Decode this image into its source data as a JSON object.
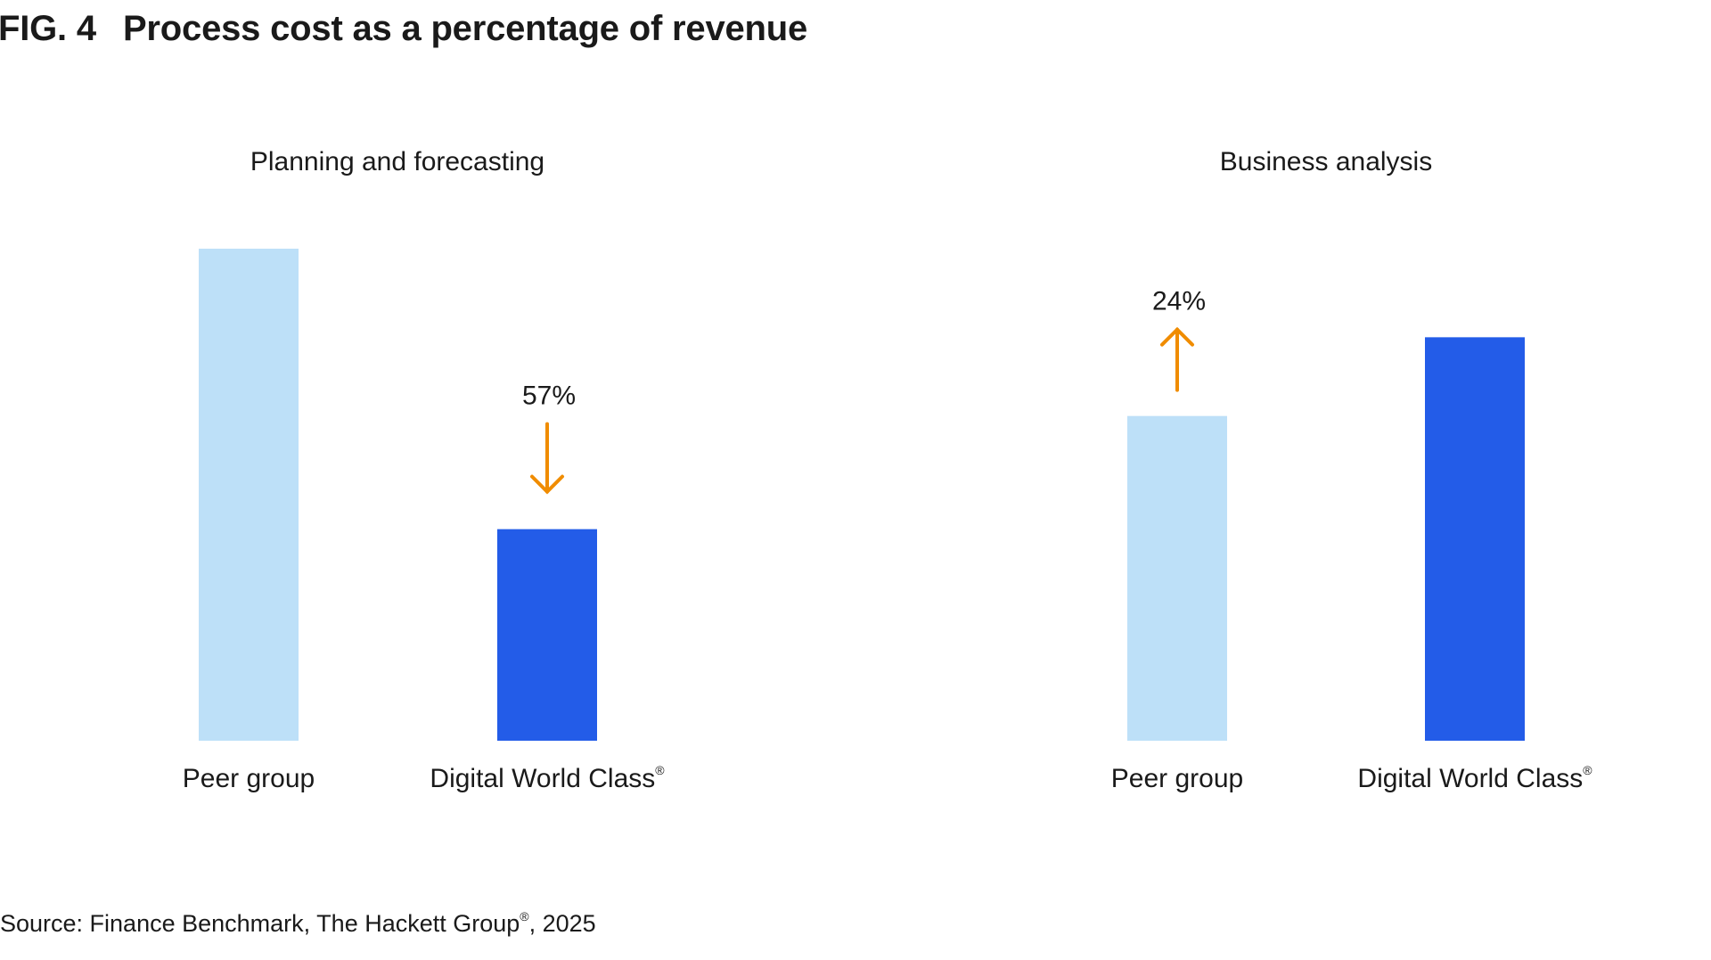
{
  "figure": {
    "number": "FIG. 4",
    "title": "Process cost as a percentage of revenue"
  },
  "source": {
    "prefix": "Source: Finance Benchmark, The Hackett Group",
    "sup": "®",
    "suffix": ", 2025"
  },
  "colors": {
    "peer_group": "#bde0f8",
    "digital_world_class": "#235ce8",
    "arrow": "#f08c00"
  },
  "chart_data": [
    {
      "type": "bar",
      "title": "Planning and forecasting",
      "categories": [
        "Peer group",
        "Digital World Class"
      ],
      "category_sup": [
        "",
        "®"
      ],
      "values": [
        1.0,
        0.43
      ],
      "value_note": "relative; Digital World Class is 57% lower than Peer group",
      "annotation": {
        "text": "57%",
        "direction": "down",
        "on_category": "Digital World Class"
      },
      "axis_visible": false,
      "grid": false
    },
    {
      "type": "bar",
      "title": "Business analysis",
      "categories": [
        "Peer group",
        "Digital World Class"
      ],
      "category_sup": [
        "",
        "®"
      ],
      "values": [
        0.66,
        0.82
      ],
      "value_note": "relative; Digital World Class is 24% higher than Peer group",
      "annotation": {
        "text": "24%",
        "direction": "up",
        "on_category": "Peer group"
      },
      "axis_visible": false,
      "grid": false
    }
  ]
}
